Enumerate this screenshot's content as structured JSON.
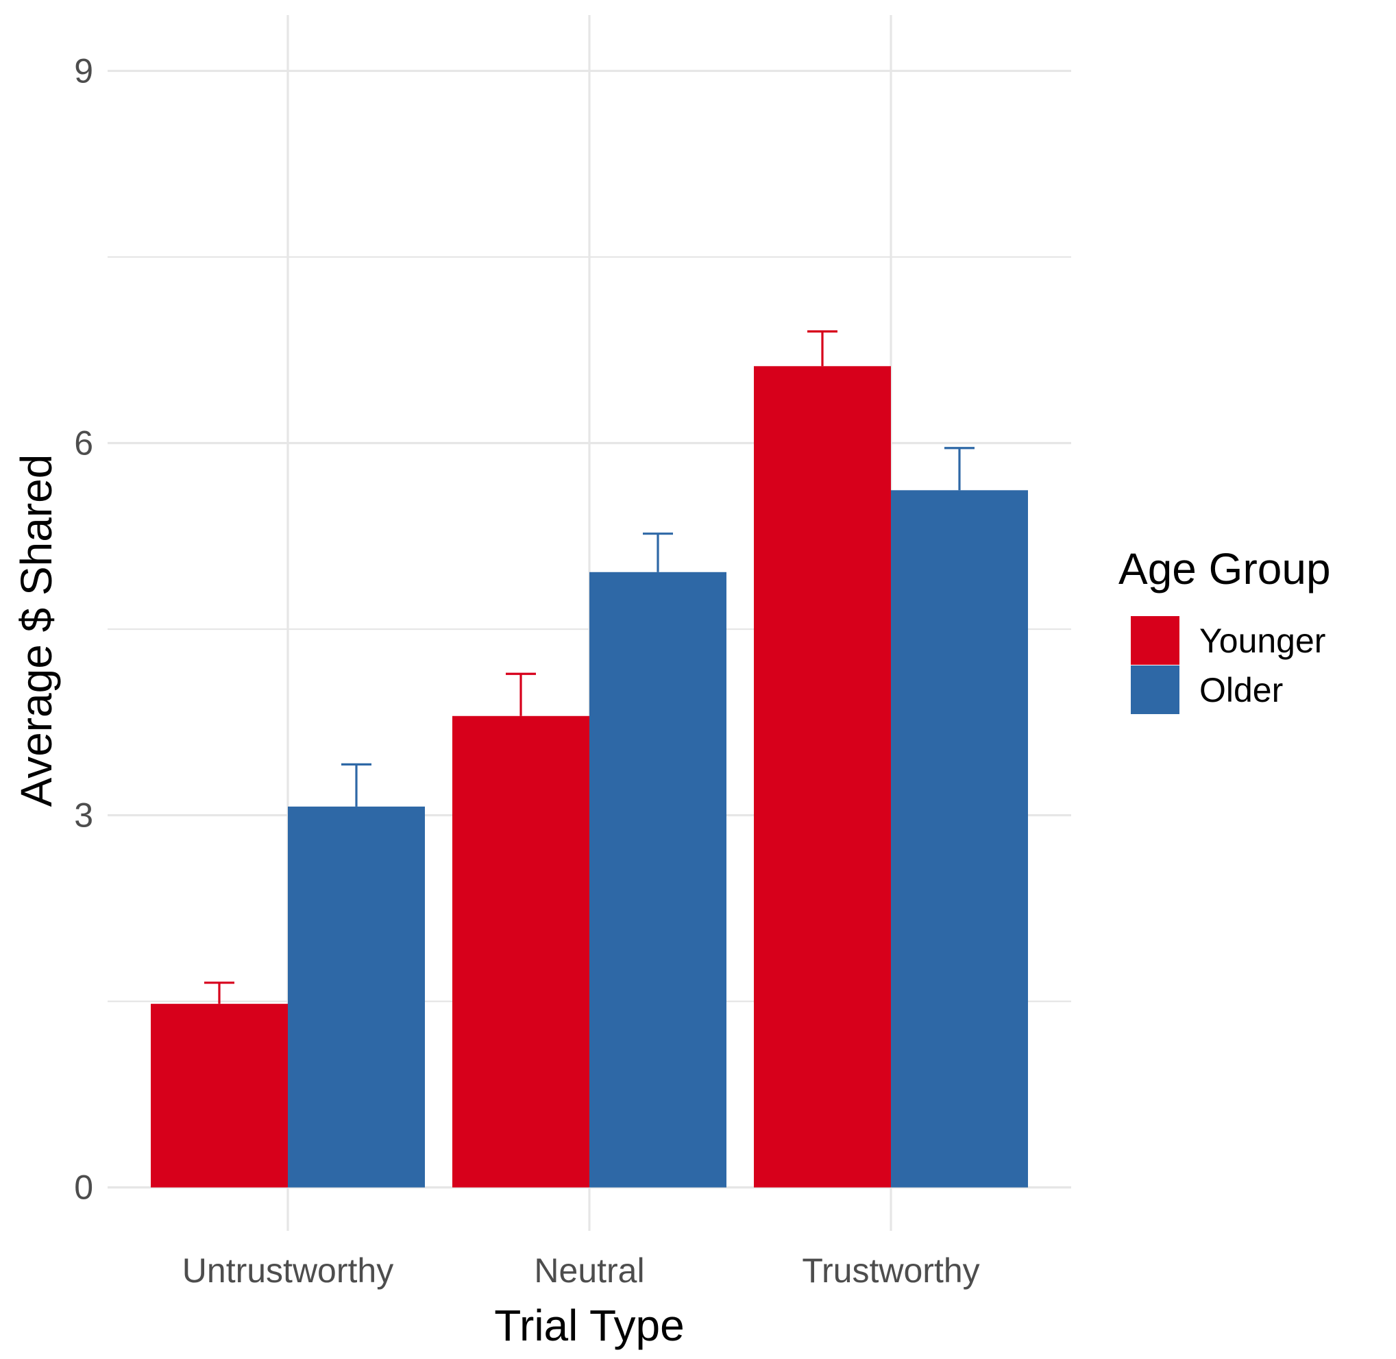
{
  "chart_data": {
    "type": "bar",
    "xlabel": "Trial Type",
    "ylabel": "Average $ Shared",
    "categories": [
      "Untrustworthy",
      "Neutral",
      "Trustworthy"
    ],
    "ylim": [
      -0.35,
      9.45
    ],
    "yticks": [
      0,
      3,
      6,
      9
    ],
    "yminor": [
      1.5,
      4.5,
      7.5
    ],
    "grid": true,
    "legend": {
      "title": "Age Group",
      "position": "right"
    },
    "series": [
      {
        "name": "Younger",
        "color": "#d7001b",
        "values": [
          1.48,
          3.8,
          6.62
        ],
        "error_upper": [
          1.65,
          4.14,
          6.9
        ]
      },
      {
        "name": "Older",
        "color": "#2e68a6",
        "values": [
          3.07,
          4.96,
          5.62
        ],
        "error_upper": [
          3.41,
          5.27,
          5.96
        ]
      }
    ]
  }
}
